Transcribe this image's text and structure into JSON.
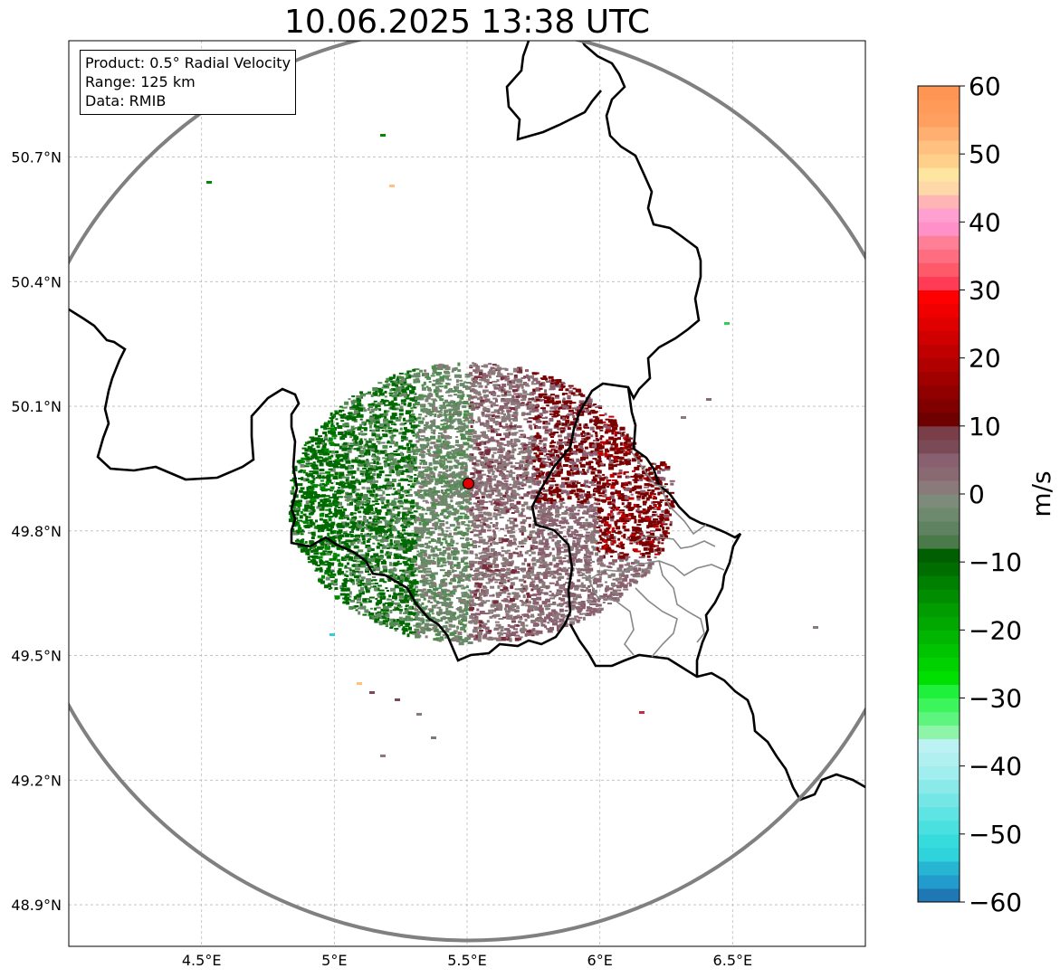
{
  "title": "10.06.2025 13:38 UTC",
  "info": {
    "product": "Product: 0.5° Radial Velocity",
    "range": "Range: 125 km",
    "data": "Data: RMIB"
  },
  "map": {
    "lon_range": [
      4.0,
      7.0
    ],
    "lat_range": [
      48.8,
      50.98
    ],
    "lon_ticks": [
      {
        "v": 4.5,
        "label": "4.5°E"
      },
      {
        "v": 5.0,
        "label": "5°E"
      },
      {
        "v": 5.5,
        "label": "5.5°E"
      },
      {
        "v": 6.0,
        "label": "6°E"
      },
      {
        "v": 6.5,
        "label": "6.5°E"
      }
    ],
    "lat_ticks": [
      {
        "v": 50.7,
        "label": "50.7°N"
      },
      {
        "v": 50.4,
        "label": "50.4°N"
      },
      {
        "v": 50.1,
        "label": "50.1°N"
      },
      {
        "v": 49.8,
        "label": "49.8°N"
      },
      {
        "v": 49.5,
        "label": "49.5°N"
      },
      {
        "v": 49.2,
        "label": "49.2°N"
      },
      {
        "v": 48.9,
        "label": "48.9°N"
      }
    ],
    "radar_site": {
      "lon": 5.505,
      "lat": 49.914
    },
    "range_km": 125,
    "gridlines": true
  },
  "colorbar": {
    "unit": "m/s",
    "vmin": -60,
    "vmax": 60,
    "ticks": [
      {
        "v": 60,
        "label": "60"
      },
      {
        "v": 50,
        "label": "50"
      },
      {
        "v": 40,
        "label": "40"
      },
      {
        "v": 30,
        "label": "30"
      },
      {
        "v": 20,
        "label": "20"
      },
      {
        "v": 10,
        "label": "10"
      },
      {
        "v": 0,
        "label": "0"
      },
      {
        "v": -10,
        "label": "−10"
      },
      {
        "v": -20,
        "label": "−20"
      },
      {
        "v": -30,
        "label": "−30"
      },
      {
        "v": -40,
        "label": "−40"
      },
      {
        "v": -50,
        "label": "−50"
      },
      {
        "v": -60,
        "label": "−60"
      }
    ],
    "colors": [
      "#1f77b4",
      "#229ccc",
      "#26b6d4",
      "#2ed3dc",
      "#36dcdc",
      "#4ae0e0",
      "#5ee4e2",
      "#74e6e6",
      "#8aeaea",
      "#a0eeee",
      "#b0f0f0",
      "#bdf2f4",
      "#8ef5a8",
      "#5ef57e",
      "#3cf55a",
      "#1ef03c",
      "#00e000",
      "#00d200",
      "#00c400",
      "#00b600",
      "#00a800",
      "#009c00",
      "#008e00",
      "#008000",
      "#006d00",
      "#005f00",
      "#4a7a4a",
      "#5f8260",
      "#6e8a6e",
      "#7d8c7a",
      "#8a7a7a",
      "#8a6a72",
      "#886070",
      "#7a4a56",
      "#7a3e48",
      "#6e0000",
      "#800000",
      "#900000",
      "#a00000",
      "#b00000",
      "#c00000",
      "#d00000",
      "#e00000",
      "#f00000",
      "#ff0000",
      "#ff3b55",
      "#ff5a6a",
      "#ff6e80",
      "#ff7f96",
      "#ff90c8",
      "#ffa0d0",
      "#ffb5b5",
      "#ffd8a8",
      "#ffe6a0",
      "#ffd08a",
      "#ffc080",
      "#ffb070",
      "#ffa060",
      "#ff9a58",
      "#ff9555"
    ]
  },
  "radar_colors": {
    "neg_strong": "#006a00",
    "neg_mid": "#008a00",
    "neg_light": "#4f8a4f",
    "zero_green": "#6a8a6a",
    "zero_grey": "#8a7a7a",
    "pos_light": "#8a6070",
    "pos_mid": "#7a2a3a",
    "pos_strong": "#780000",
    "pos_red": "#c00000"
  }
}
